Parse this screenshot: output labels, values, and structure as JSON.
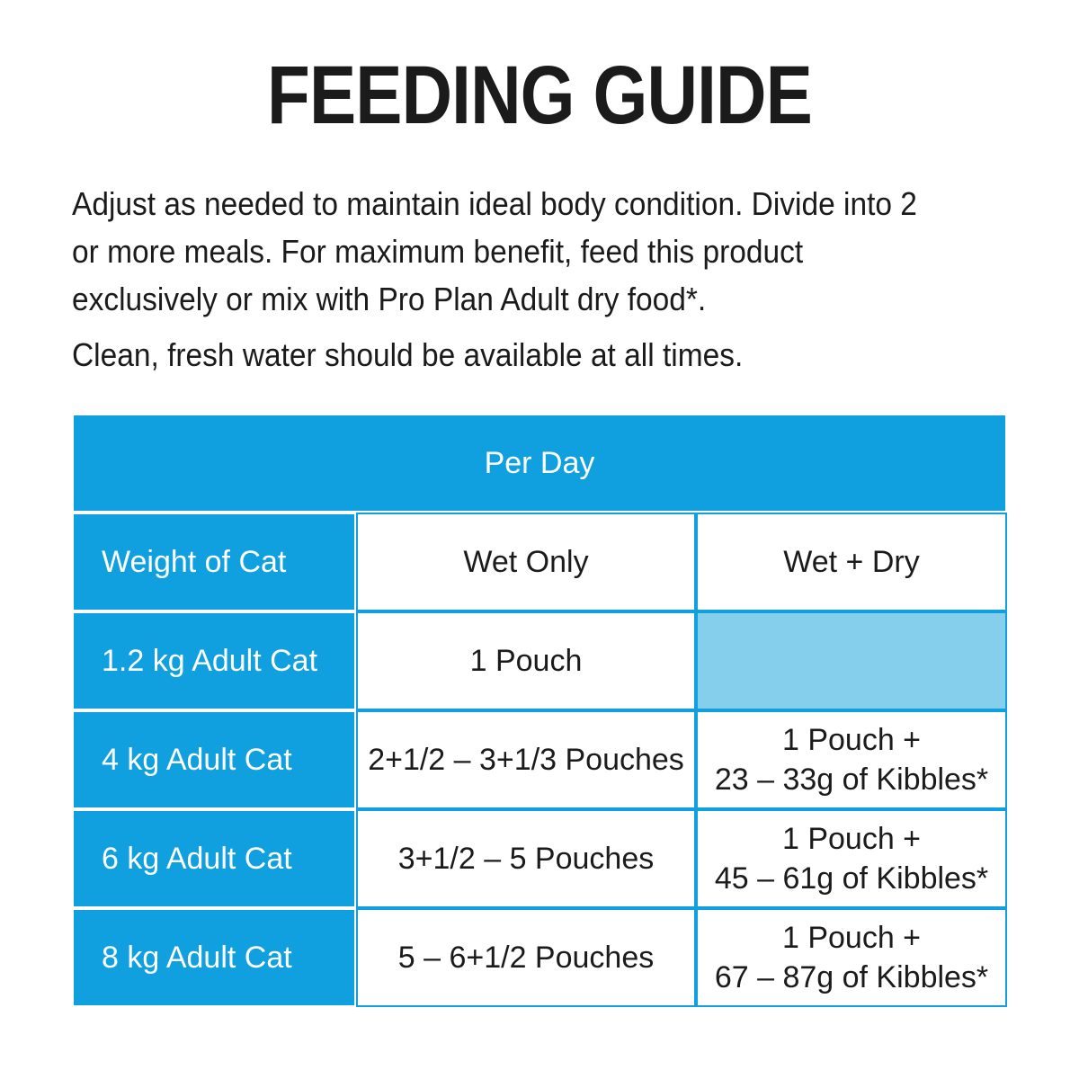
{
  "page": {
    "title": "FEEDING GUIDE",
    "intro": "Adjust as needed to maintain ideal body condition. Divide into 2\nor more meals. For maximum benefit, feed this product\nexclusively or mix with Pro Plan Adult dry food*.",
    "water_note": "Clean, fresh water should be available at all times."
  },
  "colors": {
    "blue": "#10a0e0",
    "light_blue": "#85ceec",
    "text": "#1b1b1b"
  },
  "table": {
    "header": "Per Day",
    "columns": [
      "Weight of Cat",
      "Wet Only",
      "Wet + Dry"
    ],
    "rows": [
      {
        "weight": "1.2 kg Adult Cat",
        "wet_only": "1 Pouch",
        "wet_dry": ""
      },
      {
        "weight": "4 kg Adult Cat",
        "wet_only": "2+1/2 – 3+1/3 Pouches",
        "wet_dry": "1 Pouch +\n23 – 33g of Kibbles*"
      },
      {
        "weight": "6 kg Adult Cat",
        "wet_only": "3+1/2 – 5 Pouches",
        "wet_dry": "1 Pouch +\n45 – 61g of Kibbles*"
      },
      {
        "weight": "8 kg Adult Cat",
        "wet_only": "5 – 6+1/2 Pouches",
        "wet_dry": "1 Pouch +\n67 – 87g of Kibbles*"
      }
    ]
  }
}
